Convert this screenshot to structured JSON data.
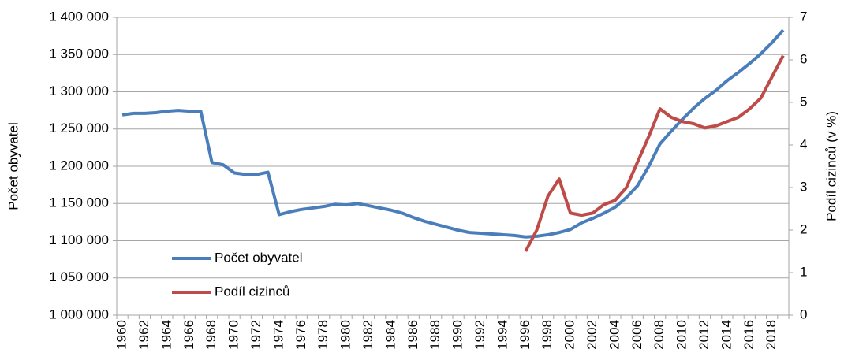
{
  "chart_data": {
    "type": "line",
    "y_label": "Počet obyvatel",
    "y2_label": "Podíl cizinců (v %)",
    "categories": [
      "1960",
      null,
      "1962",
      null,
      "1964",
      null,
      "1966",
      null,
      "1968",
      null,
      "1970",
      null,
      "1972",
      null,
      "1974",
      null,
      "1976",
      null,
      "1978",
      null,
      "1980",
      null,
      "1982",
      null,
      "1984",
      null,
      "1986",
      null,
      "1988",
      null,
      "1990",
      null,
      "1992",
      null,
      "1994",
      null,
      "1996",
      null,
      "1998",
      null,
      "2000",
      null,
      "2002",
      null,
      "2004",
      null,
      "2006",
      null,
      "2008",
      null,
      "2010",
      null,
      "2012",
      null,
      "2014",
      null,
      "2016",
      null,
      "2018",
      null
    ],
    "series": [
      {
        "name": "Počet obyvatel",
        "color": "#4a7ebb",
        "values": [
          1269000,
          1271000,
          1271000,
          1272000,
          1274000,
          1275000,
          1274000,
          1274000,
          1205000,
          1202000,
          1191000,
          1189000,
          1189000,
          1192000,
          1135000,
          1139000,
          1142000,
          1144000,
          1146000,
          1149000,
          1148000,
          1150000,
          1147000,
          1144000,
          1141000,
          1137000,
          1131000,
          1126000,
          1122000,
          1118000,
          1114000,
          1111000,
          1110000,
          1109000,
          1108000,
          1107000,
          1105000,
          1106000,
          1108000,
          1111000,
          1115000,
          1124000,
          1130000,
          1137000,
          1145000,
          1158000,
          1174000,
          1200000,
          1230000,
          1247000,
          1263000,
          1278000,
          1291000,
          1302000,
          1315000,
          1326000,
          1338000,
          1351000,
          1366000,
          1383000
        ]
      },
      {
        "name": "Podíl cizinců",
        "color": "#be4b48",
        "axis": "y2",
        "values": [
          null,
          null,
          null,
          null,
          null,
          null,
          null,
          null,
          null,
          null,
          null,
          null,
          null,
          null,
          null,
          null,
          null,
          null,
          null,
          null,
          null,
          null,
          null,
          null,
          null,
          null,
          null,
          null,
          null,
          null,
          null,
          null,
          null,
          null,
          null,
          null,
          1.5,
          2.0,
          2.8,
          3.2,
          2.4,
          2.35,
          2.4,
          2.6,
          2.7,
          3.0,
          3.6,
          4.2,
          4.85,
          4.65,
          4.55,
          4.5,
          4.4,
          4.45,
          4.55,
          4.65,
          4.85,
          5.1,
          5.6,
          6.1
        ]
      }
    ],
    "ylim": [
      1000000,
      1400000
    ],
    "yticks": [
      {
        "value": 1000000,
        "label": "1 000 000"
      },
      {
        "value": 1050000,
        "label": "1 050 000"
      },
      {
        "value": 1100000,
        "label": "1 100 000"
      },
      {
        "value": 1150000,
        "label": "1 150 000"
      },
      {
        "value": 1200000,
        "label": "1 200 000"
      },
      {
        "value": 1250000,
        "label": "1 250 000"
      },
      {
        "value": 1300000,
        "label": "1 300 000"
      },
      {
        "value": 1350000,
        "label": "1 350 000"
      },
      {
        "value": 1400000,
        "label": "1 400 000"
      }
    ],
    "y2lim": [
      0,
      7
    ],
    "y2ticks": [
      0,
      1,
      2,
      3,
      4,
      5,
      6,
      7
    ],
    "grid": true,
    "legend": "lower left"
  }
}
